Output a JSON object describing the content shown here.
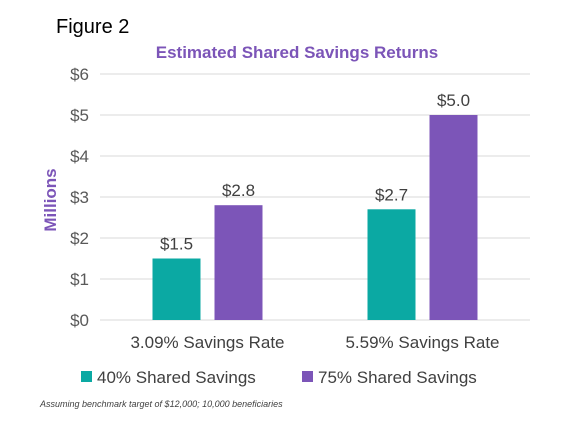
{
  "figure_label": "Figure 2",
  "footnote": "Assuming benchmark target of $12,000; 10,000 beneficiaries",
  "colors": {
    "title": "#7C55B8",
    "grid": "#D9D9D9",
    "series_40": "#0BA9A3",
    "series_75": "#7C55B8"
  },
  "chart_data": {
    "type": "bar",
    "title": "Estimated Shared Savings Returns",
    "ylabel": "Millions",
    "xlabel": "",
    "ylim": [
      0,
      6
    ],
    "yticks": [
      0,
      1,
      2,
      3,
      4,
      5,
      6
    ],
    "ytick_labels": [
      "$0",
      "$1",
      "$2",
      "$3",
      "$4",
      "$5",
      "$6"
    ],
    "categories": [
      "3.09% Savings Rate",
      "5.59% Savings Rate"
    ],
    "series": [
      {
        "name": "40% Shared Savings",
        "values": [
          1.5,
          2.7
        ],
        "labels": [
          "$1.5",
          "$2.7"
        ]
      },
      {
        "name": "75% Shared Savings",
        "values": [
          2.8,
          5.0
        ],
        "labels": [
          "$2.8",
          "$5.0"
        ]
      }
    ],
    "grid": true,
    "legend_position": "bottom"
  }
}
